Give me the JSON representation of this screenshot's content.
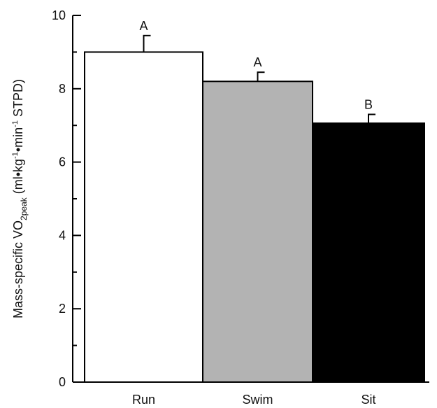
{
  "chart_data": {
    "type": "bar",
    "categories": [
      "Run",
      "Swim",
      "Sit"
    ],
    "values": [
      9.0,
      8.2,
      7.06
    ],
    "errors": [
      0.45,
      0.25,
      0.24
    ],
    "significance_labels": [
      "A",
      "A",
      "B"
    ],
    "bar_colors": [
      "#ffffff",
      "#b3b3b3",
      "#000000"
    ],
    "ylim": [
      0,
      10
    ],
    "yticks": [
      "0",
      "2",
      "4",
      "6",
      "8",
      "10"
    ],
    "ytick_values": [
      0,
      2,
      4,
      6,
      8,
      10
    ],
    "ylabel": {
      "part1": "Mass-specific VO",
      "sub": "2peak",
      "part2": " (ml•kg",
      "sup1": "-1",
      "part3": "•min",
      "sup2": "-1",
      "part4": " STPD)"
    },
    "xlabel": "",
    "grid": false
  }
}
